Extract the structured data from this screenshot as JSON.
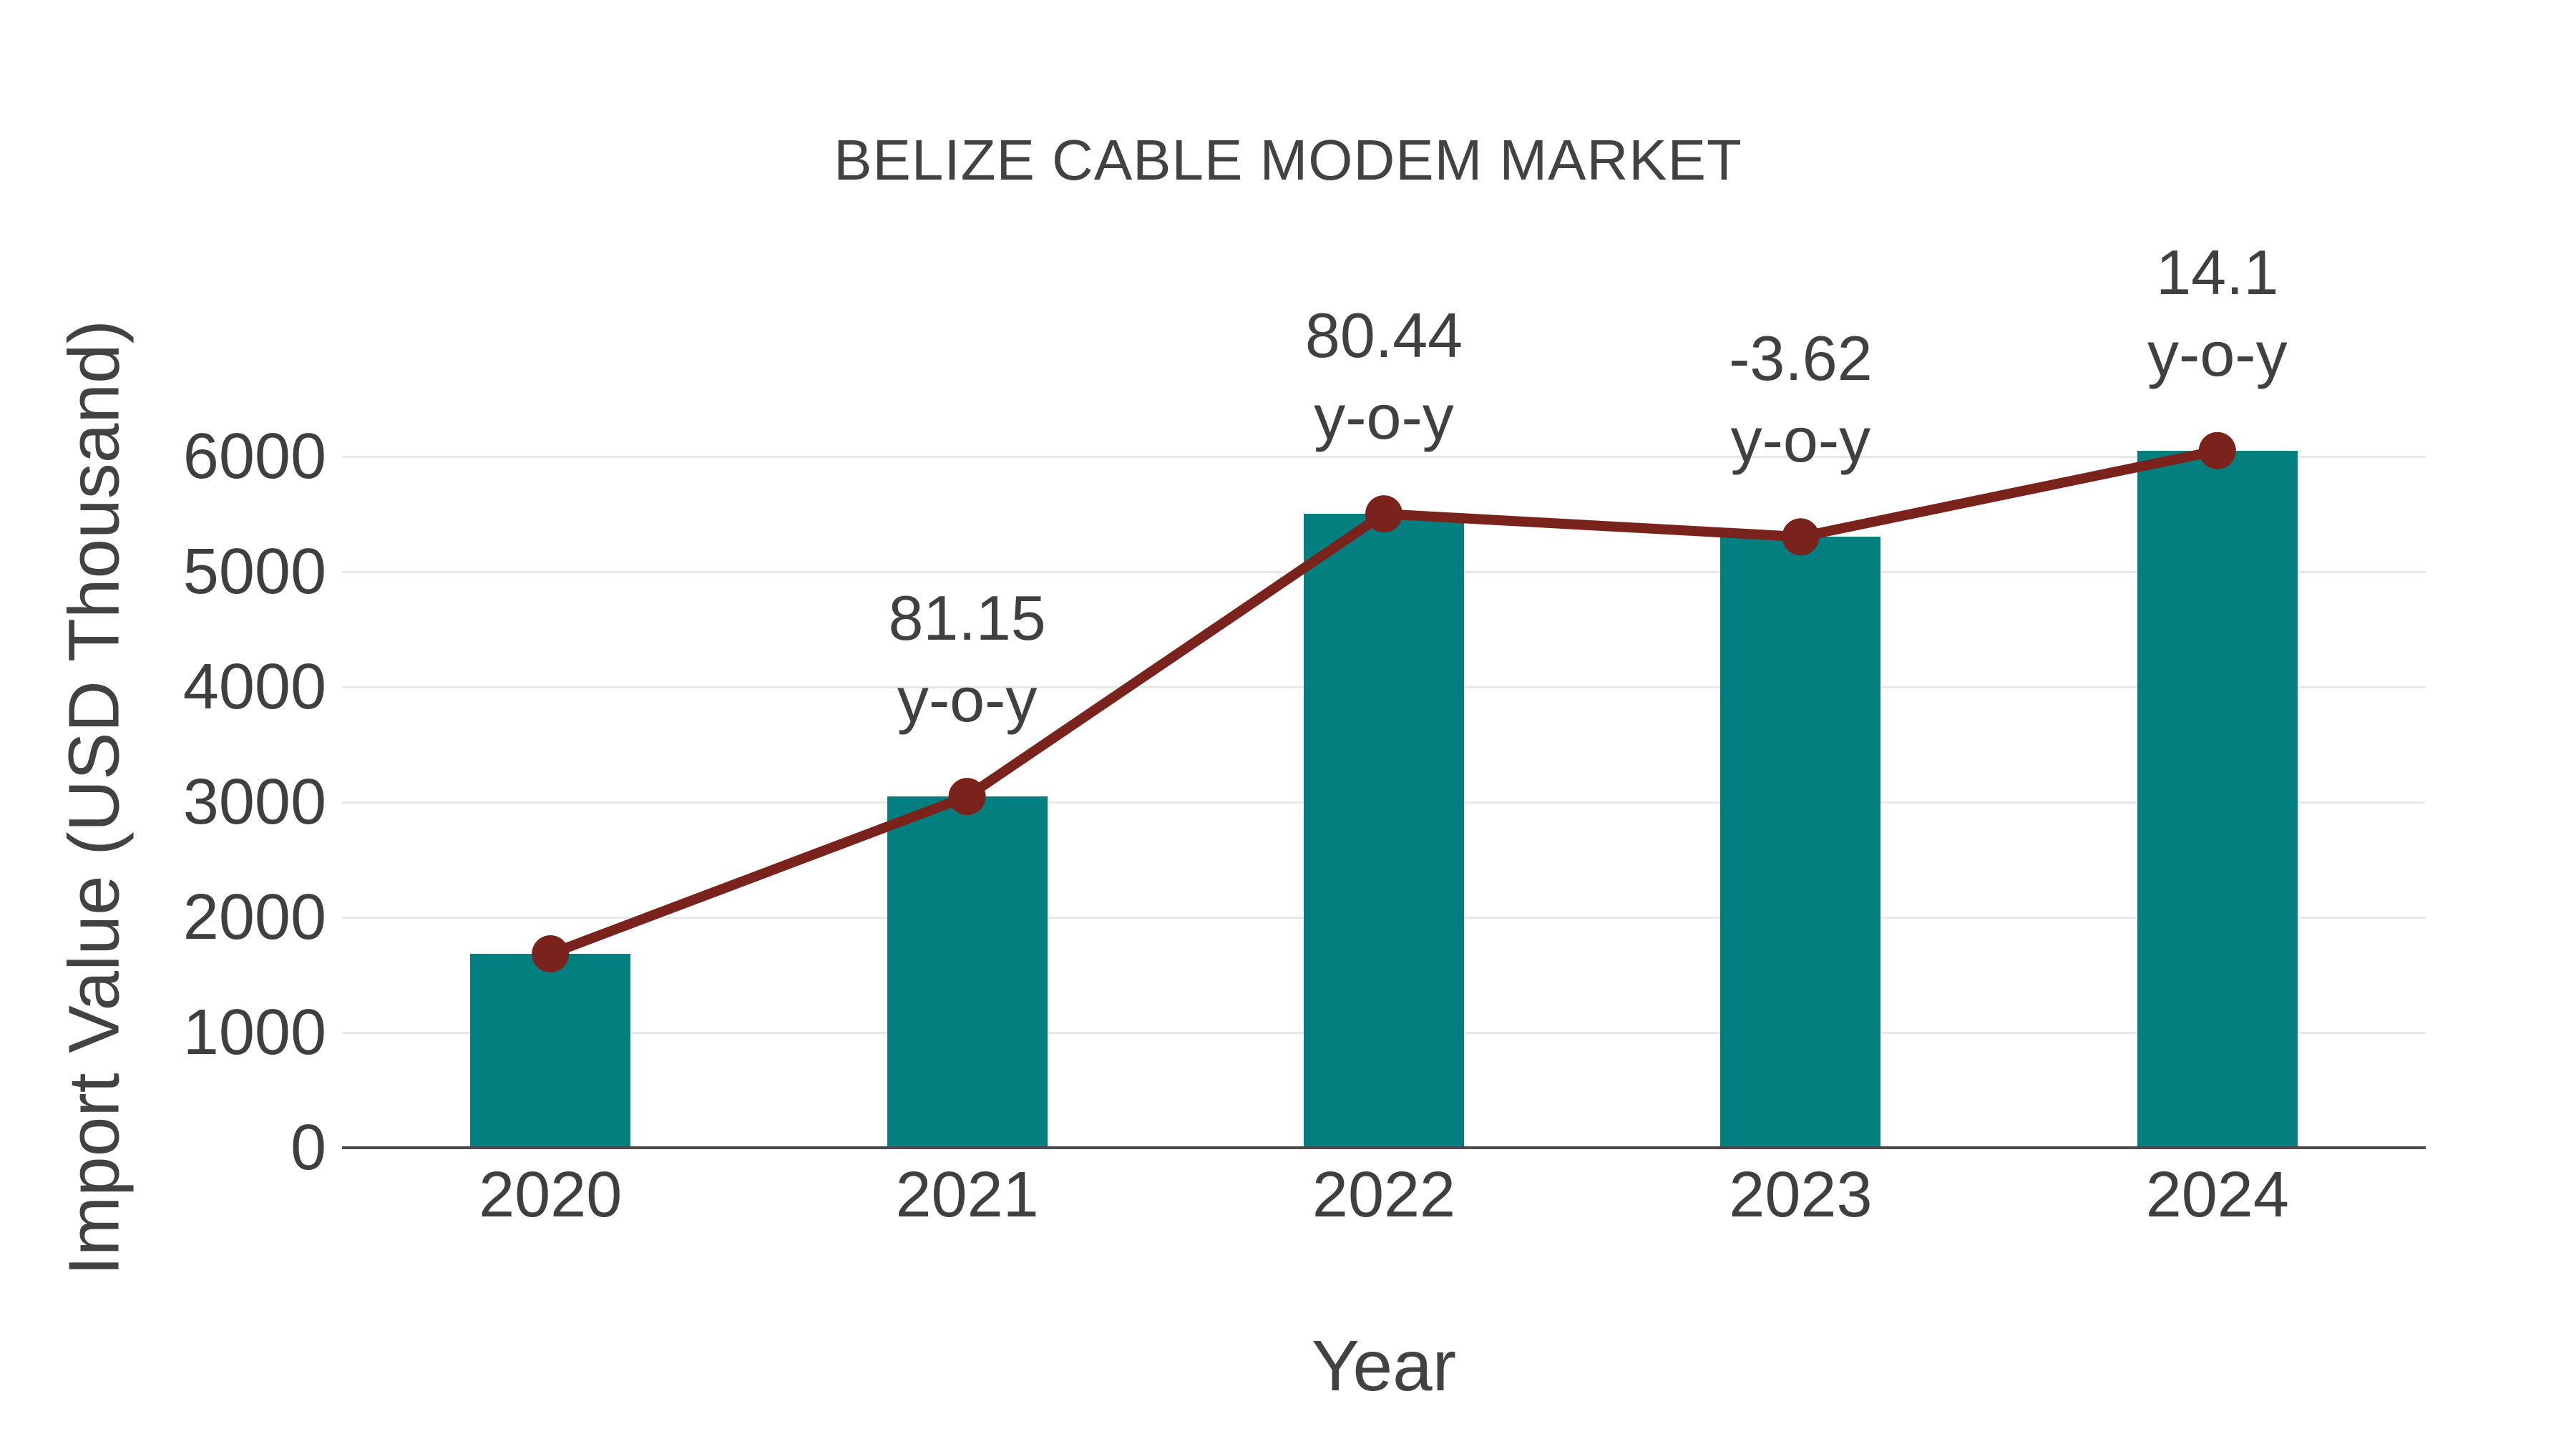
{
  "chart_data": {
    "type": "bar",
    "title": "BELIZE CABLE MODEM MARKET",
    "xlabel": "Year",
    "ylabel": "Import Value (USD Thousand)",
    "categories": [
      "2020",
      "2021",
      "2022",
      "2023",
      "2024"
    ],
    "series": [
      {
        "name": "Import Value (USD Thousand)",
        "type": "bar",
        "values": [
          1683,
          3049,
          5502,
          5303,
          6051
        ]
      },
      {
        "name": "y-o-y growth (%)",
        "type": "line",
        "values": [
          1683,
          3049,
          5502,
          5303,
          6051
        ],
        "yoy_percent": [
          null,
          81.15,
          80.44,
          -3.62,
          14.1
        ]
      }
    ],
    "point_annotation_labels": [
      "",
      "81.15",
      "80.44",
      "-3.62",
      "14.1"
    ],
    "annotation_suffix": "y-o-y",
    "yticks": [
      0,
      1000,
      2000,
      3000,
      4000,
      5000,
      6000
    ],
    "ylim": [
      0,
      6730
    ],
    "grid": true,
    "legend_position": "none"
  },
  "colors": {
    "bar": "#027f7e",
    "line": "#7a231d",
    "marker": "#7a231d",
    "text": "#3f3f3f",
    "title_text": "#424242",
    "axis_line": "#4a4a4a",
    "gridline": "#e8e8e8",
    "background": "#ffffff"
  }
}
